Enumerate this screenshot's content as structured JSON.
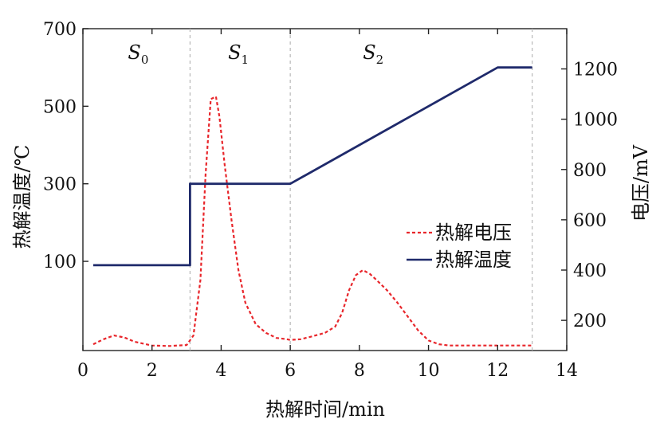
{
  "chart_data": {
    "type": "line",
    "xlabel": "热解时间/min",
    "ylabel": "热解温度/℃",
    "y2label": "电压/mV",
    "xlim": [
      0,
      14
    ],
    "ylim": [
      -130,
      700
    ],
    "y2lim": [
      80,
      1360
    ],
    "xticks": [
      0,
      2,
      4,
      6,
      8,
      10,
      12,
      14
    ],
    "yticks": [
      100,
      300,
      500,
      700
    ],
    "y2ticks": [
      200,
      400,
      600,
      800,
      1000,
      1200
    ],
    "grid": false,
    "legend_position": "center-right",
    "stage_boundaries": [
      3.1,
      6.0,
      13.0
    ],
    "stages": [
      {
        "letter": "S",
        "sub": "0",
        "x": 1.6
      },
      {
        "letter": "S",
        "sub": "1",
        "x": 4.5
      },
      {
        "letter": "S",
        "sub": "2",
        "x": 8.4
      }
    ],
    "series": [
      {
        "name": "热解电压",
        "axis": "right",
        "color": "#e8262b",
        "style": "dashed",
        "x": [
          0.3,
          0.6,
          0.9,
          1.2,
          1.5,
          2.0,
          2.5,
          3.0,
          3.2,
          3.4,
          3.55,
          3.7,
          3.85,
          3.95,
          4.1,
          4.3,
          4.5,
          4.7,
          5.0,
          5.3,
          5.6,
          5.9,
          6.0,
          6.3,
          6.6,
          7.0,
          7.3,
          7.5,
          7.7,
          7.9,
          8.1,
          8.3,
          8.5,
          8.8,
          9.1,
          9.4,
          9.7,
          10.0,
          10.3,
          10.6,
          11.0,
          11.5,
          12.0,
          12.5,
          13.0
        ],
        "y": [
          105,
          125,
          140,
          132,
          115,
          100,
          98,
          102,
          140,
          360,
          780,
          1080,
          1090,
          1010,
          820,
          600,
          400,
          270,
          185,
          150,
          130,
          125,
          122,
          125,
          135,
          150,
          175,
          230,
          320,
          380,
          400,
          385,
          360,
          320,
          270,
          215,
          160,
          120,
          105,
          100,
          100,
          100,
          100,
          100,
          100
        ]
      },
      {
        "name": "热解温度",
        "axis": "left",
        "color": "#1f2a6b",
        "style": "solid",
        "x": [
          0.3,
          3.1,
          3.1,
          6.0,
          12.0,
          13.0
        ],
        "y": [
          90,
          90,
          300,
          300,
          600,
          600
        ]
      }
    ]
  }
}
